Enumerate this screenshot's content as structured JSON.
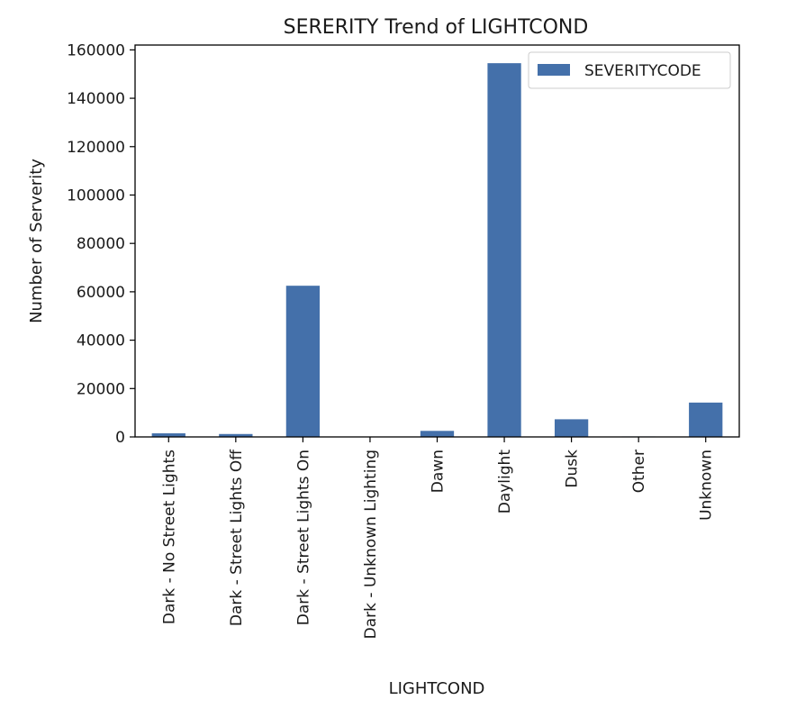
{
  "chart_data": {
    "type": "bar",
    "title": "SERERITY Trend of LIGHTCOND",
    "xlabel": "LIGHTCOND",
    "ylabel": "Number of Serverity",
    "categories": [
      "Dark - No Street Lights",
      "Dark - Street Lights Off",
      "Dark - Street Lights On",
      "Dark - Unknown Lighting",
      "Dawn",
      "Daylight",
      "Dusk",
      "Other",
      "Unknown"
    ],
    "series": [
      {
        "name": "SEVERITYCODE",
        "color": "#4470aa",
        "values": [
          1500,
          1200,
          62500,
          10,
          2500,
          154500,
          7300,
          200,
          14200
        ]
      }
    ],
    "ylim": [
      0,
      162000
    ],
    "yticks": [
      0,
      20000,
      40000,
      60000,
      80000,
      100000,
      120000,
      140000,
      160000
    ],
    "legend_position": "top-right",
    "grid": false
  }
}
